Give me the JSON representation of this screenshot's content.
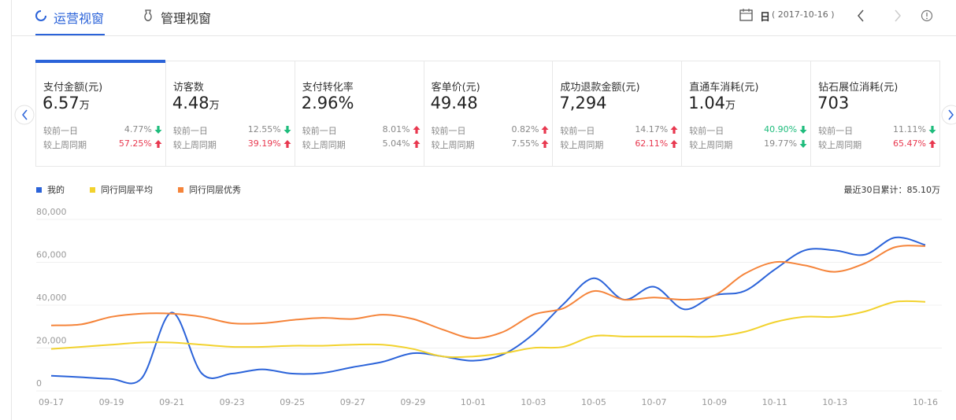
{
  "tabs": [
    {
      "label": "运营视窗",
      "active": true
    },
    {
      "label": "管理视窗",
      "active": false
    }
  ],
  "date_picker": {
    "unit": "日",
    "date": "( 2017-10-16 )"
  },
  "metrics": [
    {
      "title": "支付金额(元)",
      "value": "6.57",
      "unit": "万",
      "selected": true,
      "rows": [
        {
          "label": "较前一日",
          "change": "4.77%",
          "trend": "down",
          "highlight": false
        },
        {
          "label": "较上周同期",
          "change": "57.25%",
          "trend": "up",
          "highlight": true
        }
      ]
    },
    {
      "title": "访客数",
      "value": "4.48",
      "unit": "万",
      "selected": false,
      "rows": [
        {
          "label": "较前一日",
          "change": "12.55%",
          "trend": "down",
          "highlight": false
        },
        {
          "label": "较上周同期",
          "change": "39.19%",
          "trend": "up",
          "highlight": true
        }
      ]
    },
    {
      "title": "支付转化率",
      "value": "2.96%",
      "selected": false,
      "rows": [
        {
          "label": "较前一日",
          "change": "8.01%",
          "trend": "up",
          "highlight": false
        },
        {
          "label": "较上周同期",
          "change": "5.04%",
          "trend": "up",
          "highlight": false
        }
      ]
    },
    {
      "title": "客单价(元)",
      "value": "49.48",
      "selected": false,
      "rows": [
        {
          "label": "较前一日",
          "change": "0.82%",
          "trend": "up",
          "highlight": false
        },
        {
          "label": "较上周同期",
          "change": "7.55%",
          "trend": "up",
          "highlight": false
        }
      ]
    },
    {
      "title": "成功退款金额(元)",
      "value": "7,294",
      "selected": false,
      "rows": [
        {
          "label": "较前一日",
          "change": "14.17%",
          "trend": "up",
          "highlight": false
        },
        {
          "label": "较上周同期",
          "change": "62.11%",
          "trend": "up",
          "highlight": true
        }
      ]
    },
    {
      "title": "直通车消耗(元)",
      "value": "1.04",
      "unit": "万",
      "selected": false,
      "rows": [
        {
          "label": "较前一日",
          "change": "40.90%",
          "trend": "down",
          "highlight": true
        },
        {
          "label": "较上周同期",
          "change": "19.77%",
          "trend": "down",
          "highlight": false
        }
      ]
    },
    {
      "title": "钻石展位消耗(元)",
      "value": "703",
      "selected": false,
      "rows": [
        {
          "label": "较前一日",
          "change": "11.11%",
          "trend": "down",
          "highlight": false
        },
        {
          "label": "较上周同期",
          "change": "65.47%",
          "trend": "up",
          "highlight": true
        }
      ]
    }
  ],
  "chart_data": {
    "type": "line",
    "note": "最近30日累计：85.10万",
    "categories": [
      "09-17",
      null,
      "09-19",
      null,
      "09-21",
      null,
      "09-23",
      null,
      "09-25",
      null,
      "09-27",
      null,
      "09-29",
      null,
      "10-01",
      null,
      "10-03",
      null,
      "10-05",
      null,
      "10-07",
      null,
      "10-09",
      null,
      "10-11",
      null,
      "10-13",
      null,
      null,
      "10-16"
    ],
    "ylim": [
      0,
      80000
    ],
    "yticks": [
      0,
      {
        "value": 20000,
        "label": "20,000"
      },
      {
        "value": 40000,
        "label": "40,000"
      },
      {
        "value": 60000,
        "label": "60,000"
      },
      {
        "value": 80000,
        "label": "80,000"
      }
    ],
    "grid": true,
    "series": [
      {
        "name": "我的",
        "color": "#2b63d9",
        "values": [
          4500,
          3800,
          3000,
          3300,
          34000,
          5500,
          5500,
          7500,
          5500,
          5800,
          8500,
          11000,
          15000,
          13500,
          11500,
          14500,
          24000,
          38000,
          50000,
          40000,
          46000,
          35500,
          42000,
          44000,
          54000,
          63000,
          63000,
          61000,
          69000,
          65500
        ]
      },
      {
        "name": "同行同层平均",
        "color": "#f2d22e",
        "values": [
          17000,
          18000,
          19000,
          20000,
          20000,
          19000,
          18000,
          18000,
          18500,
          18500,
          19000,
          19000,
          17000,
          13500,
          13500,
          15000,
          17500,
          18000,
          23000,
          22800,
          22800,
          22800,
          22800,
          25000,
          29500,
          32000,
          32000,
          34500,
          39000,
          39000
        ]
      },
      {
        "name": "同行同层优秀",
        "color": "#f5843a",
        "values": [
          28000,
          28500,
          32000,
          33500,
          33500,
          32000,
          29000,
          29000,
          30500,
          31500,
          31000,
          33000,
          31000,
          26000,
          22000,
          25000,
          33000,
          36000,
          44000,
          40000,
          41000,
          40000,
          42000,
          52000,
          57500,
          56000,
          53000,
          57000,
          64500,
          65000
        ]
      }
    ]
  }
}
